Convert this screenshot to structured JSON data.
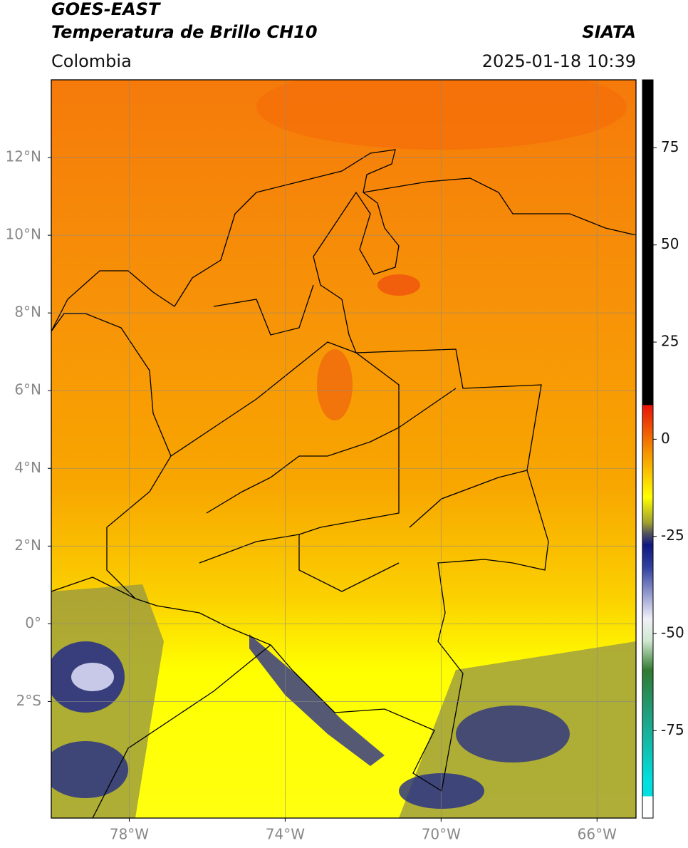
{
  "header": {
    "title": "GOES-EAST",
    "subtitle": "Temperatura de Brillo CH10",
    "source": "SIATA",
    "region": "Colombia",
    "timestamp": "2025-01-18 10:39"
  },
  "map": {
    "xlim": [
      -80,
      -65
    ],
    "ylim": [
      -5,
      14
    ],
    "xticks": [
      {
        "value": -78,
        "label": "78°W"
      },
      {
        "value": -74,
        "label": "74°W"
      },
      {
        "value": -70,
        "label": "70°W"
      },
      {
        "value": -66,
        "label": "66°W"
      }
    ],
    "yticks": [
      {
        "value": 12,
        "label": "12°N"
      },
      {
        "value": 10,
        "label": "10°N"
      },
      {
        "value": 8,
        "label": "8°N"
      },
      {
        "value": 6,
        "label": "6°N"
      },
      {
        "value": 4,
        "label": "4°N"
      },
      {
        "value": 2,
        "label": "2°N"
      },
      {
        "value": 0,
        "label": "0°"
      },
      {
        "value": -2,
        "label": "2°S"
      }
    ],
    "grid": true
  },
  "colorbar": {
    "lim": [
      -97.5,
      92.5
    ],
    "ticks": [
      75,
      50,
      25,
      0,
      -25,
      -50,
      -75
    ]
  }
}
